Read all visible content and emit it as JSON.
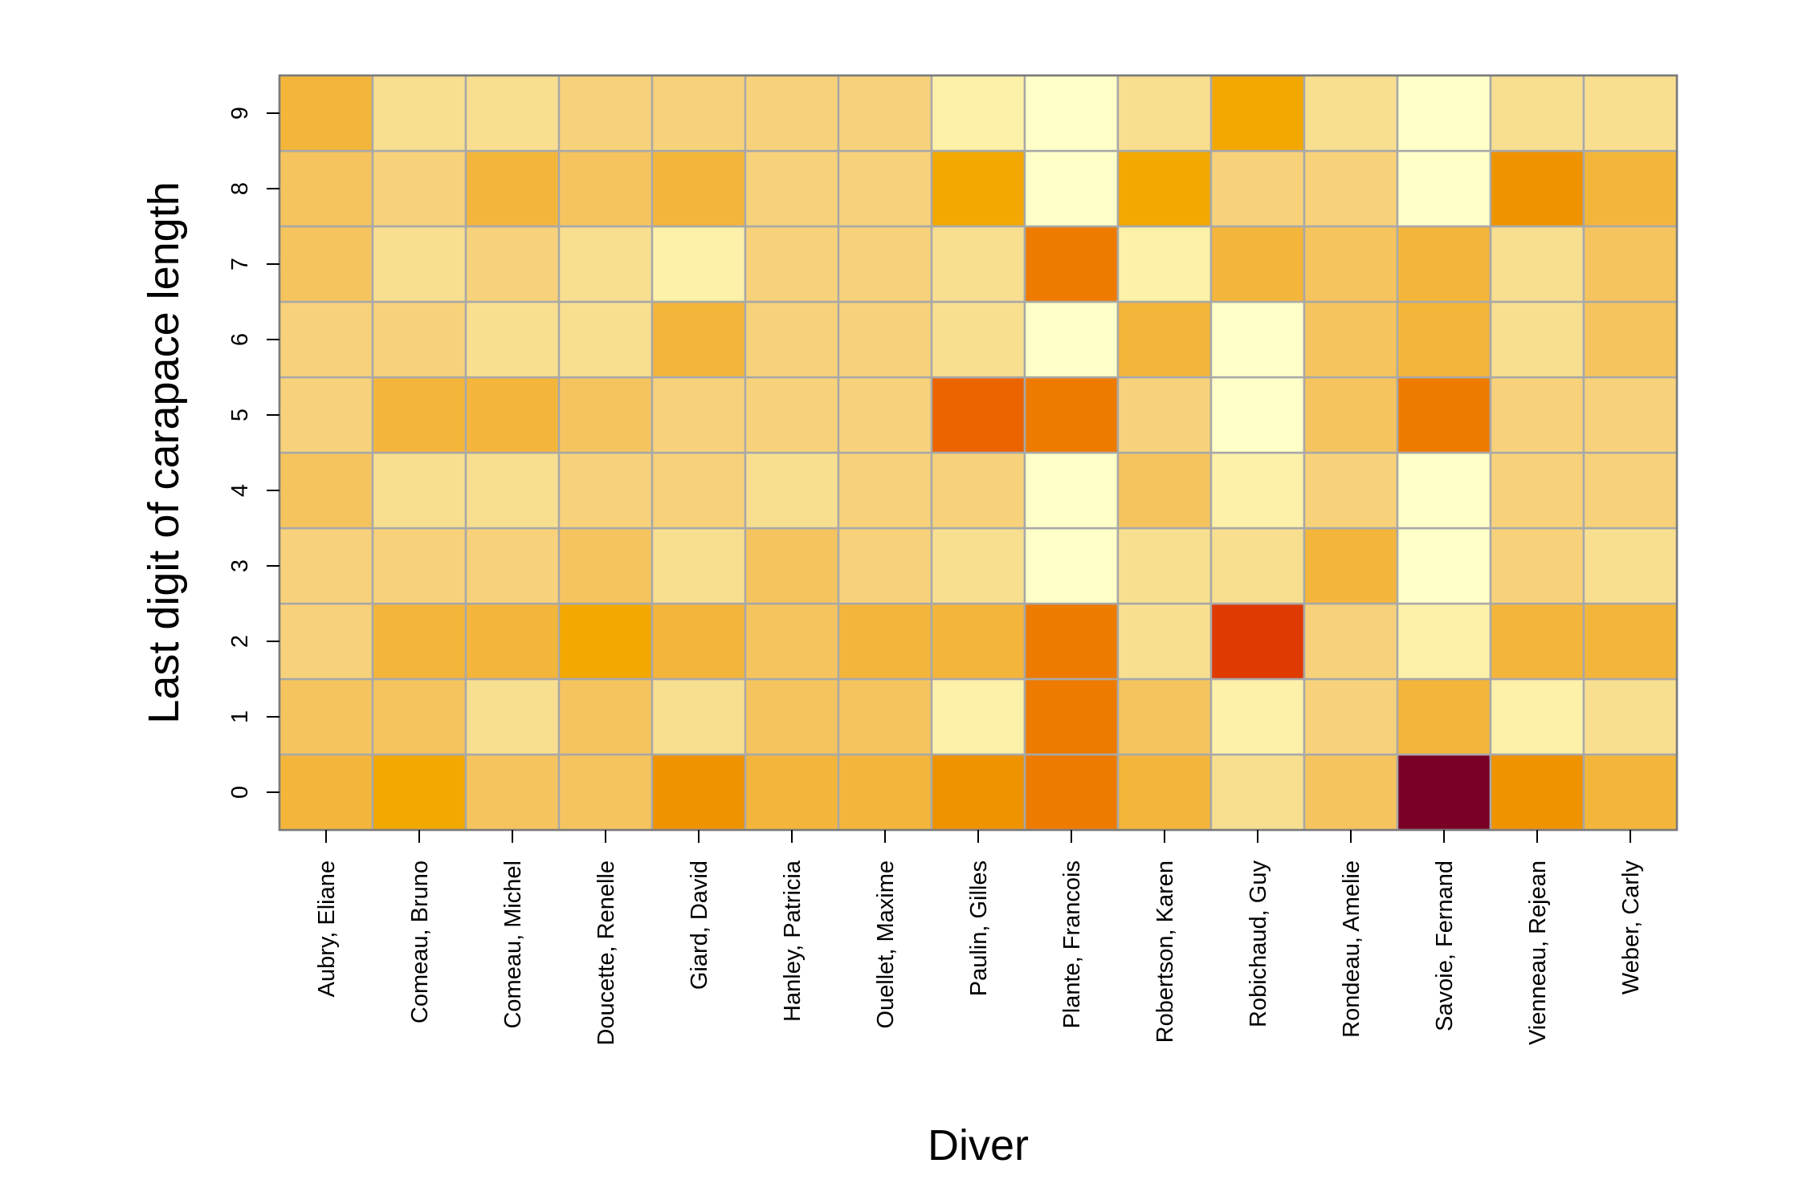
{
  "chart_data": {
    "type": "heatmap",
    "title": "",
    "xlabel": "Diver",
    "ylabel": "Last digit of carapace length",
    "x_categories": [
      "Aubry, Eliane",
      "Comeau, Bruno",
      "Comeau, Michel",
      "Doucette, Renelle",
      "Giard, David",
      "Hanley, Patricia",
      "Ouellet, Maxime",
      "Paulin, Gilles",
      "Plante, Francois",
      "Robertson, Karen",
      "Robichaud, Guy",
      "Rondeau, Amelie",
      "Savoie, Fernand",
      "Vienneau, Rejean",
      "Weber, Carly"
    ],
    "y_categories": [
      "0",
      "1",
      "2",
      "3",
      "4",
      "5",
      "6",
      "7",
      "8",
      "9"
    ],
    "grid": true,
    "legend": "none",
    "color_scale": {
      "name": "YlOrRd (light = low, dark red = high)",
      "stops": [
        "#ffffc8",
        "#fdf0a8",
        "#f8df90",
        "#f7d27a",
        "#f6c45e",
        "#f4b63a",
        "#f3a800",
        "#f09300",
        "#ee7b00",
        "#eb6400",
        "#df3b00",
        "#7a0026"
      ]
    },
    "values": [
      [
        5,
        4,
        3,
        3,
        4,
        3,
        3,
        4,
        4,
        5
      ],
      [
        6,
        4,
        5,
        3,
        2,
        5,
        3,
        2,
        3,
        2
      ],
      [
        4,
        2,
        5,
        3,
        2,
        5,
        2,
        3,
        5,
        2
      ],
      [
        4,
        4,
        6,
        4,
        3,
        4,
        2,
        2,
        4,
        3
      ],
      [
        7,
        2,
        5,
        2,
        3,
        3,
        5,
        1,
        5,
        3
      ],
      [
        5,
        4,
        4,
        4,
        2,
        3,
        3,
        3,
        3,
        3
      ],
      [
        5,
        4,
        5,
        3,
        3,
        3,
        3,
        3,
        3,
        3
      ],
      [
        7,
        1,
        5,
        2,
        3,
        9,
        2,
        2,
        6,
        1
      ],
      [
        8,
        8,
        8,
        0,
        0,
        8,
        0,
        8,
        0,
        0
      ],
      [
        5,
        4,
        2,
        2,
        4,
        3,
        5,
        1,
        6,
        2
      ],
      [
        2,
        1,
        10,
        2,
        1,
        0,
        0,
        5,
        3,
        6
      ],
      [
        4,
        3,
        3,
        5,
        3,
        4,
        4,
        4,
        3,
        2
      ],
      [
        11,
        5,
        1,
        0,
        0,
        8,
        5,
        5,
        0,
        0
      ],
      [
        7,
        1,
        5,
        3,
        3,
        3,
        2,
        2,
        7,
        2
      ],
      [
        5,
        2,
        5,
        2,
        3,
        3,
        4,
        4,
        5,
        2
      ]
    ]
  }
}
